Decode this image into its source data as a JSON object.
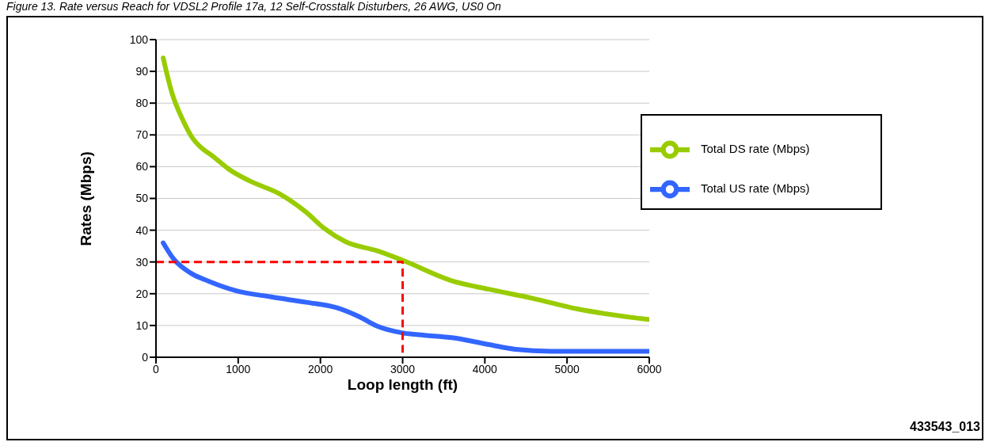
{
  "chart_data": {
    "type": "line",
    "title": "Figure 13. Rate versus Reach for VDSL2 Profile 17a, 12 Self-Crosstalk Disturbers, 26 AWG, US0 On",
    "xlabel": "Loop length (ft)",
    "ylabel": "Rates (Mbps)",
    "annotations": [
      "433543_013"
    ],
    "xlim": [
      0,
      6000
    ],
    "xticks": [
      0,
      1000,
      2000,
      3000,
      4000,
      5000,
      6000
    ],
    "ylim": [
      0,
      100
    ],
    "yticks": [
      0,
      10,
      20,
      30,
      40,
      50,
      60,
      70,
      80,
      90,
      100
    ],
    "grid": "y",
    "legend": "top right",
    "marker": "none",
    "line_style": "solid",
    "series": [
      {
        "name": "Total DS rate (Mbps)",
        "color": "#99cc00",
        "x": [
          88,
          192,
          321,
          450,
          537,
          687,
          881,
          1140,
          1506,
          1829,
          2045,
          2303,
          2691,
          2993,
          3618,
          4049,
          4588,
          5126,
          5988
        ],
        "values": [
          94.2,
          83.4,
          75,
          68.8,
          66.3,
          63.4,
          59.3,
          55.5,
          51.4,
          45.6,
          40.6,
          36.4,
          33.5,
          30.6,
          23.9,
          21.4,
          18.5,
          15.2,
          11.9
        ]
      },
      {
        "name": "Total US rate (Mbps)",
        "color": "#3366ff",
        "x": [
          88,
          213,
          429,
          645,
          968,
          1400,
          1829,
          2196,
          2476,
          2691,
          2993,
          3187,
          3618,
          4049,
          4372,
          4803,
          5988
        ],
        "values": [
          36,
          31,
          26.4,
          23.9,
          21,
          19,
          17.3,
          15.6,
          12.7,
          9.8,
          7.7,
          7.1,
          6.1,
          4,
          2.5,
          1.9,
          1.9
        ]
      },
      {
        "color": "#ff0000",
        "line_style": "dashed",
        "x": [
          0,
          3000,
          3000
        ],
        "values": [
          30,
          30,
          0
        ]
      }
    ]
  }
}
